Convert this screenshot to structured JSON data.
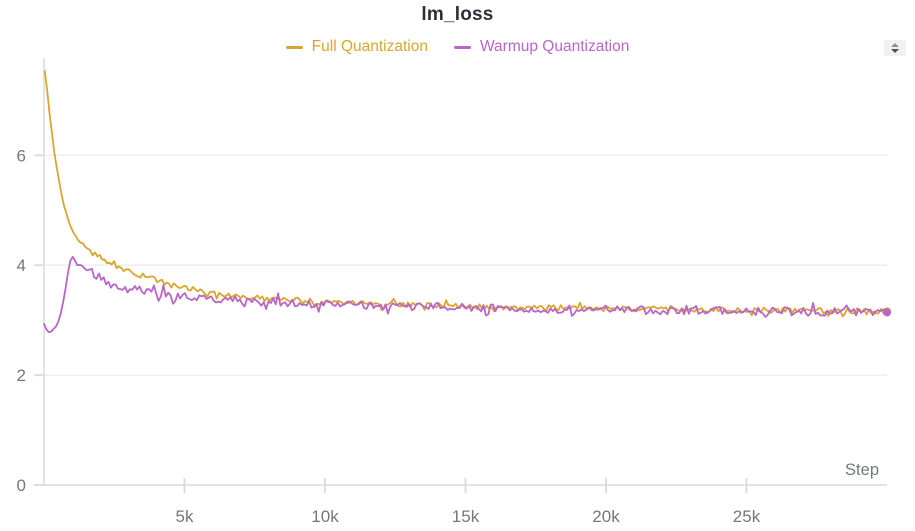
{
  "header": {
    "title": "lm_loss"
  },
  "legend": [
    {
      "label": "Full Quantization",
      "color": "#D9A62B"
    },
    {
      "label": "Warmup Quantization",
      "color": "#B965C9"
    }
  ],
  "chart_data": {
    "type": "line",
    "title": "lm_loss",
    "xlabel": "Step",
    "ylabel": "",
    "xlim": [
      0,
      30000
    ],
    "ylim": [
      0,
      7.77
    ],
    "grid": "horizontal",
    "legend_position": "top-center",
    "x_ticks": [
      {
        "value": 5000,
        "label": "5k"
      },
      {
        "value": 10000,
        "label": "10k"
      },
      {
        "value": 15000,
        "label": "15k"
      },
      {
        "value": 20000,
        "label": "20k"
      },
      {
        "value": 25000,
        "label": "25k"
      }
    ],
    "y_ticks": [
      {
        "value": 0,
        "label": "0"
      },
      {
        "value": 2,
        "label": "2"
      },
      {
        "value": 4,
        "label": "4"
      },
      {
        "value": 6,
        "label": "6"
      }
    ],
    "axis_color": "#e3e3e5",
    "grid_color": "#ededef",
    "tick_color": "#dcdcde",
    "label_color": "#73787e",
    "sample_interval": 85,
    "noise_seed": 12,
    "end_dot_radius": 4,
    "series": [
      {
        "name": "Full Quantization",
        "color": "#D9A62B",
        "noise_amplitude": 0.05,
        "noise_ramp_until": 1150,
        "spike_probability": 0.09,
        "spike_multiplier": 2.3,
        "trend": [
          [
            30,
            7.55
          ],
          [
            80,
            7.35
          ],
          [
            150,
            7.0
          ],
          [
            250,
            6.55
          ],
          [
            350,
            6.1
          ],
          [
            450,
            5.8
          ],
          [
            550,
            5.5
          ],
          [
            650,
            5.2
          ],
          [
            750,
            5.0
          ],
          [
            850,
            4.85
          ],
          [
            950,
            4.7
          ],
          [
            1050,
            4.6
          ],
          [
            1200,
            4.48
          ],
          [
            1400,
            4.38
          ],
          [
            1600,
            4.3
          ],
          [
            1800,
            4.23
          ],
          [
            2000,
            4.16
          ],
          [
            2300,
            4.06
          ],
          [
            2600,
            3.99
          ],
          [
            3000,
            3.9
          ],
          [
            3400,
            3.82
          ],
          [
            3800,
            3.76
          ],
          [
            4200,
            3.7
          ],
          [
            4600,
            3.64
          ],
          [
            5000,
            3.6
          ],
          [
            5500,
            3.55
          ],
          [
            6000,
            3.5
          ],
          [
            6500,
            3.46
          ],
          [
            7000,
            3.43
          ],
          [
            7500,
            3.41
          ],
          [
            8000,
            3.39
          ],
          [
            9000,
            3.36
          ],
          [
            10000,
            3.33
          ],
          [
            11000,
            3.31
          ],
          [
            12000,
            3.29
          ],
          [
            13000,
            3.28
          ],
          [
            14000,
            3.26
          ],
          [
            15000,
            3.25
          ],
          [
            16000,
            3.24
          ],
          [
            17000,
            3.23
          ],
          [
            18000,
            3.23
          ],
          [
            19000,
            3.22
          ],
          [
            20000,
            3.21
          ],
          [
            22000,
            3.2
          ],
          [
            24000,
            3.19
          ],
          [
            26000,
            3.18
          ],
          [
            28000,
            3.17
          ],
          [
            30000,
            3.16
          ]
        ]
      },
      {
        "name": "Warmup Quantization",
        "color": "#B965C9",
        "noise_amplitude": 0.075,
        "noise_ramp_until": 1050,
        "spike_probability": 0.08,
        "spike_multiplier": 2.2,
        "trend": [
          [
            0,
            2.92
          ],
          [
            100,
            2.82
          ],
          [
            200,
            2.78
          ],
          [
            300,
            2.8
          ],
          [
            420,
            2.88
          ],
          [
            520,
            3.0
          ],
          [
            620,
            3.18
          ],
          [
            720,
            3.45
          ],
          [
            820,
            3.75
          ],
          [
            900,
            4.0
          ],
          [
            980,
            4.17
          ],
          [
            1060,
            4.1
          ],
          [
            1150,
            4.02
          ],
          [
            1300,
            3.98
          ],
          [
            1450,
            3.95
          ],
          [
            1600,
            3.9
          ],
          [
            1800,
            3.83
          ],
          [
            2000,
            3.77
          ],
          [
            2300,
            3.68
          ],
          [
            2600,
            3.62
          ],
          [
            3000,
            3.57
          ],
          [
            3400,
            3.54
          ],
          [
            3800,
            3.51
          ],
          [
            4200,
            3.48
          ],
          [
            4600,
            3.45
          ],
          [
            5000,
            3.43
          ],
          [
            5500,
            3.41
          ],
          [
            6000,
            3.39
          ],
          [
            6500,
            3.37
          ],
          [
            7000,
            3.35
          ],
          [
            7500,
            3.34
          ],
          [
            8000,
            3.33
          ],
          [
            9000,
            3.31
          ],
          [
            10000,
            3.29
          ],
          [
            11000,
            3.27
          ],
          [
            12000,
            3.26
          ],
          [
            13000,
            3.25
          ],
          [
            14000,
            3.24
          ],
          [
            15000,
            3.23
          ],
          [
            16000,
            3.22
          ],
          [
            17000,
            3.21
          ],
          [
            18000,
            3.2
          ],
          [
            19000,
            3.19
          ],
          [
            20000,
            3.19
          ],
          [
            22000,
            3.18
          ],
          [
            24000,
            3.17
          ],
          [
            26000,
            3.16
          ],
          [
            28000,
            3.15
          ],
          [
            30000,
            3.14
          ]
        ]
      }
    ]
  }
}
